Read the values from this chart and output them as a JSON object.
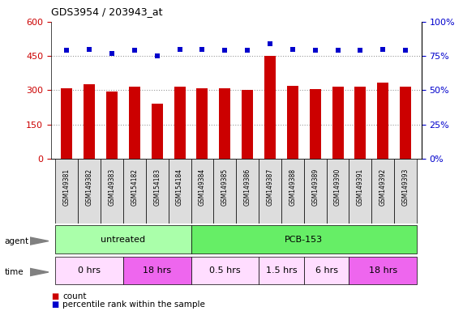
{
  "title": "GDS3954 / 203943_at",
  "samples": [
    "GSM149381",
    "GSM149382",
    "GSM149383",
    "GSM154182",
    "GSM154183",
    "GSM154184",
    "GSM149384",
    "GSM149385",
    "GSM149386",
    "GSM149387",
    "GSM149388",
    "GSM149389",
    "GSM149390",
    "GSM149391",
    "GSM149392",
    "GSM149393"
  ],
  "counts": [
    310,
    325,
    295,
    315,
    240,
    315,
    310,
    310,
    300,
    450,
    320,
    305,
    315,
    315,
    335,
    315
  ],
  "percentile_ranks": [
    79,
    80,
    77,
    79,
    75,
    80,
    80,
    79,
    79,
    84,
    80,
    79,
    79,
    79,
    80,
    79
  ],
  "bar_color": "#cc0000",
  "dot_color": "#0000cc",
  "ylim_left": [
    0,
    600
  ],
  "ylim_right": [
    0,
    100
  ],
  "yticks_left": [
    0,
    150,
    300,
    450,
    600
  ],
  "yticks_right": [
    0,
    25,
    50,
    75,
    100
  ],
  "ytick_labels_right": [
    "0%",
    "25%",
    "50%",
    "75%",
    "100%"
  ],
  "background_color": "#ffffff",
  "plot_bg_color": "#ffffff",
  "agent_row": {
    "label": "agent",
    "groups": [
      {
        "text": "untreated",
        "start": 0,
        "end": 6,
        "color": "#aaffaa"
      },
      {
        "text": "PCB-153",
        "start": 6,
        "end": 16,
        "color": "#66ee66"
      }
    ]
  },
  "time_row": {
    "label": "time",
    "groups": [
      {
        "text": "0 hrs",
        "start": 0,
        "end": 3,
        "color": "#ffddff"
      },
      {
        "text": "18 hrs",
        "start": 3,
        "end": 6,
        "color": "#ee66ee"
      },
      {
        "text": "0.5 hrs",
        "start": 6,
        "end": 9,
        "color": "#ffddff"
      },
      {
        "text": "1.5 hrs",
        "start": 9,
        "end": 11,
        "color": "#ffddff"
      },
      {
        "text": "6 hrs",
        "start": 11,
        "end": 13,
        "color": "#ffddff"
      },
      {
        "text": "18 hrs",
        "start": 13,
        "end": 16,
        "color": "#ee66ee"
      }
    ]
  },
  "legend_count_color": "#cc0000",
  "legend_dot_color": "#0000cc",
  "grid_color": "#999999",
  "tick_color_left": "#cc0000",
  "tick_color_right": "#0000cc",
  "sample_box_color": "#dddddd",
  "bar_width": 0.5
}
